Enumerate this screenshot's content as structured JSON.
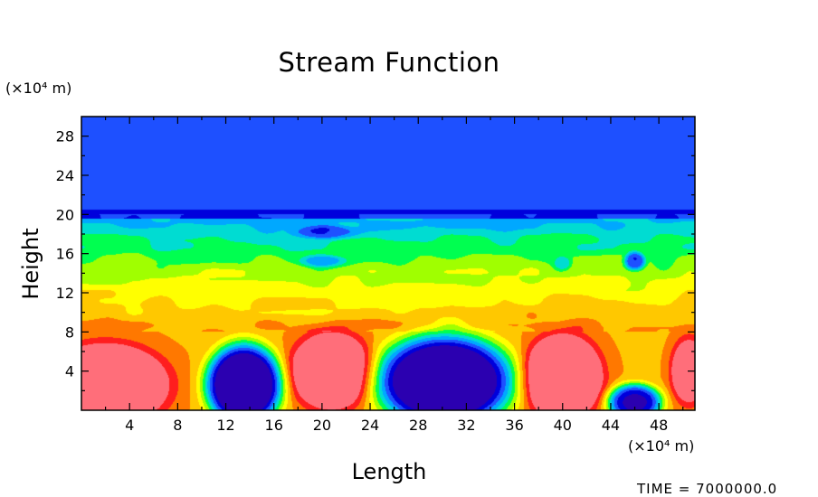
{
  "chart_data": {
    "type": "heatmap",
    "title": "Stream Function",
    "xlabel": "Length",
    "ylabel": "Height",
    "x_unit": "(×10⁴ m)",
    "y_unit": "(×10⁴ m)",
    "xlim": [
      0,
      51
    ],
    "ylim": [
      0,
      30
    ],
    "x_ticks": [
      "4",
      "8",
      "12",
      "16",
      "20",
      "24",
      "28",
      "32",
      "36",
      "40",
      "44",
      "48"
    ],
    "y_ticks": [
      "4",
      "8",
      "12",
      "16",
      "20",
      "24",
      "28"
    ],
    "colormap": [
      "#2b00b0",
      "#0000dc",
      "#1e50ff",
      "#00a8ff",
      "#00dcd2",
      "#00ff50",
      "#a0ff00",
      "#ffff00",
      "#ffc800",
      "#ff7800",
      "#ff1e1e",
      "#ff6e7a"
    ],
    "background_level": 0.47,
    "features": [
      {
        "x": 2,
        "y": 2.6,
        "rx": 6,
        "ry": 4.8,
        "value": 0.5
      },
      {
        "x": 13.5,
        "y": 2.6,
        "rx": 3.6,
        "ry": 4.8,
        "value": -1.0
      },
      {
        "x": 20.8,
        "y": 4.0,
        "rx": 4,
        "ry": 4.6,
        "value": 0.45
      },
      {
        "x": 30.2,
        "y": 3.0,
        "rx": 6.5,
        "ry": 5.4,
        "value": -1.0
      },
      {
        "x": 40.0,
        "y": 3.4,
        "rx": 3.8,
        "ry": 5.0,
        "value": 0.5
      },
      {
        "x": 46.0,
        "y": 0.8,
        "rx": 2.6,
        "ry": 2.2,
        "value": -0.75
      },
      {
        "x": 50.5,
        "y": 4.0,
        "rx": 1.8,
        "ry": 4.0,
        "value": 0.35
      },
      {
        "x": 20.5,
        "y": 18.2,
        "rx": 3.0,
        "ry": 0.8,
        "value": -0.22
      },
      {
        "x": 20.0,
        "y": 15.2,
        "rx": 2.2,
        "ry": 0.7,
        "value": -0.2
      },
      {
        "x": 46.0,
        "y": 15.2,
        "rx": 1.0,
        "ry": 1.1,
        "value": -0.4
      },
      {
        "x": 40.0,
        "y": 15.0,
        "rx": 0.8,
        "ry": 0.8,
        "value": -0.15
      }
    ]
  },
  "footer": {
    "timestamp": "TIME = 7000000.0"
  }
}
